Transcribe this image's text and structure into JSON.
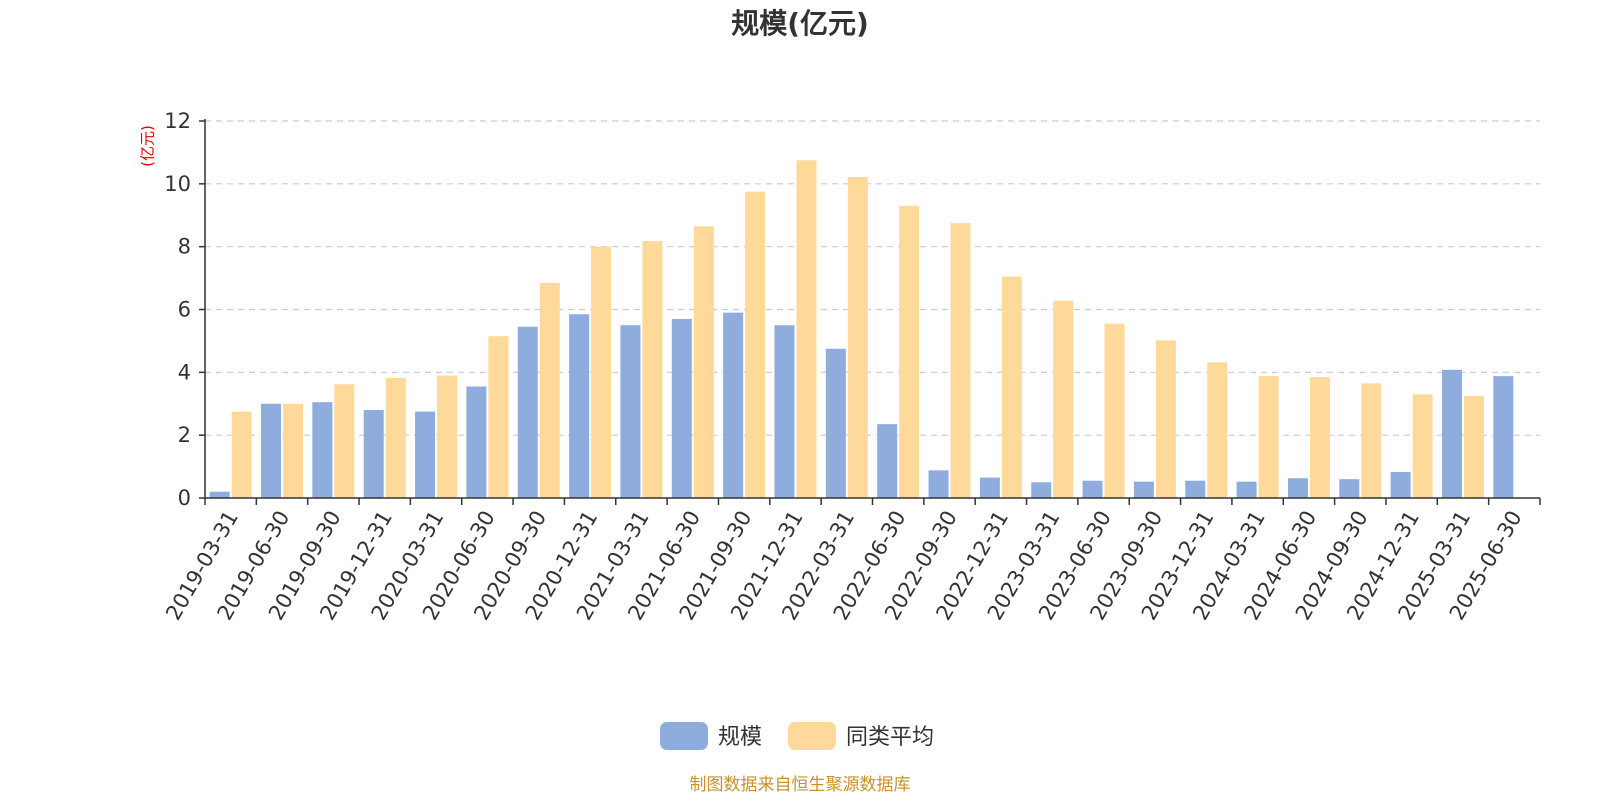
{
  "colors": {
    "scale": "#8eaddc",
    "avg": "#ffd99a",
    "source_text": "#c8922a",
    "unit_text": "#e00000"
  },
  "source_note": "制图数据来自恒生聚源数据库",
  "chart_data": {
    "type": "bar",
    "title": "规模(亿元)",
    "ylabel": "(亿元)",
    "xlabel": "",
    "ylim": [
      0,
      12
    ],
    "yticks": [
      0,
      2,
      4,
      6,
      8,
      10,
      12
    ],
    "grid": true,
    "legend_position": "bottom-center",
    "categories": [
      "2019-03-31",
      "2019-06-30",
      "2019-09-30",
      "2019-12-31",
      "2020-03-31",
      "2020-06-30",
      "2020-09-30",
      "2020-12-31",
      "2021-03-31",
      "2021-06-30",
      "2021-09-30",
      "2021-12-31",
      "2022-03-31",
      "2022-06-30",
      "2022-09-30",
      "2022-12-31",
      "2023-03-31",
      "2023-06-30",
      "2023-09-30",
      "2023-12-31",
      "2024-03-31",
      "2024-06-30",
      "2024-09-30",
      "2024-12-31",
      "2025-03-31",
      "2025-06-30"
    ],
    "series": [
      {
        "name": "规模",
        "color": "#8eaddc",
        "values": [
          0.2,
          3.0,
          3.05,
          2.8,
          2.75,
          3.55,
          5.45,
          5.85,
          5.5,
          5.7,
          5.9,
          5.5,
          4.75,
          2.35,
          0.88,
          0.65,
          0.5,
          0.55,
          0.52,
          0.55,
          0.52,
          0.63,
          0.6,
          0.83,
          4.08,
          3.88
        ]
      },
      {
        "name": "同类平均",
        "color": "#ffd99a",
        "values": [
          2.75,
          3.0,
          3.62,
          3.82,
          3.9,
          5.15,
          6.85,
          8.0,
          8.18,
          8.65,
          9.75,
          10.75,
          10.22,
          9.3,
          8.75,
          7.05,
          6.28,
          5.55,
          5.02,
          4.32,
          3.88,
          3.85,
          3.65,
          3.3,
          3.25,
          null
        ]
      }
    ]
  }
}
